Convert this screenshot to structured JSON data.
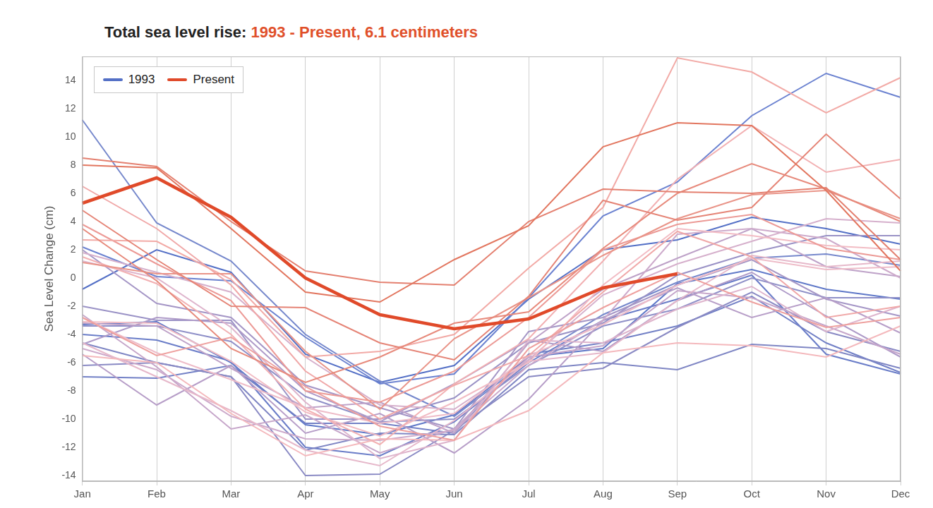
{
  "chart_data": {
    "type": "line",
    "title": "Total sea level rise:",
    "subtitle": "1993 - Present, 6.1 centimeters",
    "y_label": "Sea Level Change (cm)",
    "categories": [
      "Jan",
      "Feb",
      "Mar",
      "Apr",
      "May",
      "Jun",
      "Jul",
      "Aug",
      "Sep",
      "Oct",
      "Nov",
      "Dec"
    ],
    "ylim": [
      -14.4,
      15.7
    ],
    "yticks": [
      -14,
      -12,
      -10,
      -8,
      -6,
      -4,
      -2,
      0,
      2,
      4,
      6,
      8,
      10,
      12,
      14
    ],
    "grid": "x",
    "legend": "upper left",
    "series": [
      {
        "name": "1993",
        "color": "#5470c6",
        "values": [
          -0.8,
          2.0,
          0.4,
          -5.4,
          -7.4,
          -6.2,
          -1.5,
          2.0,
          2.7,
          4.3,
          3.5,
          2.4
        ]
      },
      {
        "color": "#5f78c8",
        "values": [
          -3.3,
          -3.1,
          -6.0,
          -10.4,
          -11.1,
          -9.7,
          -5.6,
          -5.0,
          -0.4,
          0.6,
          -0.8,
          -1.5
        ]
      },
      {
        "color": "#6a7dc8",
        "values": [
          -4.0,
          -4.4,
          -5.9,
          -12.0,
          -12.6,
          -10.2,
          -6.0,
          -3.0,
          -1.5,
          0.2,
          -5.4,
          -6.8
        ]
      },
      {
        "color": "#7280c6",
        "values": [
          -7.0,
          -7.1,
          -6.2,
          -10.3,
          -10.3,
          -11.0,
          -5.4,
          -4.6,
          -3.4,
          -1.3,
          -4.6,
          -6.7
        ]
      },
      {
        "color": "#6b82d0",
        "values": [
          2.2,
          0.1,
          -0.2,
          -4.2,
          -7.5,
          -6.8,
          -1.4,
          4.4,
          6.8,
          11.5,
          14.5,
          12.8
        ]
      },
      {
        "color": "#7688cc",
        "values": [
          11.2,
          3.9,
          1.2,
          -4.0,
          -7.3,
          -9.8,
          -5.8,
          -2.6,
          -0.3,
          1.4,
          1.7,
          0.9
        ]
      },
      {
        "color": "#7f86c4",
        "values": [
          -4.6,
          -6.0,
          -7.0,
          -12.2,
          -11.0,
          -11.1,
          -6.5,
          -6.0,
          -6.5,
          -4.7,
          -5.0,
          -6.4
        ]
      },
      {
        "color": "#8a8ac4",
        "values": [
          -6.2,
          -6.0,
          -7.0,
          -14.0,
          -13.9,
          -10.8,
          -7.0,
          -6.4,
          -3.5,
          -1.0,
          -3.8,
          -5.2
        ]
      },
      {
        "color": "#8f90c8",
        "values": [
          -3.4,
          -3.4,
          -4.5,
          -8.4,
          -10.2,
          -10.0,
          -6.2,
          -3.4,
          -2.2,
          0.0,
          -1.4,
          -1.4
        ]
      },
      {
        "color": "#9a92c6",
        "values": [
          -2.0,
          -3.0,
          -3.0,
          -10.0,
          -10.0,
          -8.5,
          -4.6,
          -3.2,
          0.2,
          1.8,
          3.0,
          3.0
        ]
      },
      {
        "color": "#a596c6",
        "values": [
          2.0,
          -1.8,
          -2.8,
          -7.6,
          -9.2,
          -10.7,
          -3.8,
          -2.8,
          -0.5,
          1.3,
          -1.5,
          -2.7
        ]
      },
      {
        "color": "#ae9ac8",
        "values": [
          -4.7,
          -2.8,
          -3.2,
          -8.0,
          -10.2,
          -7.5,
          -4.4,
          -5.2,
          -1.6,
          0.4,
          -2.7,
          -5.6
        ]
      },
      {
        "color": "#b79ec8",
        "values": [
          -5.4,
          -9.0,
          -6.2,
          -11.0,
          -9.6,
          -12.4,
          -8.6,
          -3.0,
          -0.7,
          -2.8,
          -1.4,
          -3.9
        ]
      },
      {
        "color": "#bea2c8",
        "values": [
          -3.2,
          -3.4,
          -6.4,
          -9.2,
          -8.8,
          -11.0,
          -4.6,
          -0.8,
          1.4,
          3.5,
          0.8,
          0.1
        ]
      },
      {
        "color": "#c6a6ca",
        "values": [
          -2.6,
          -6.3,
          -10.7,
          -9.7,
          -12.4,
          -10.7,
          -5.6,
          -4.8,
          -0.9,
          -1.4,
          -3.4,
          -5.4
        ]
      },
      {
        "color": "#cdaacb",
        "values": [
          -5.0,
          -6.5,
          -9.8,
          -11.4,
          -11.5,
          -10.8,
          -6.2,
          -3.0,
          3.1,
          3.5,
          2.8,
          0.0
        ]
      },
      {
        "color": "#d6b0cc",
        "values": [
          1.8,
          0.4,
          -1.0,
          -5.6,
          -9.0,
          -9.3,
          -5.8,
          -1.2,
          1.0,
          2.6,
          4.2,
          3.9
        ]
      },
      {
        "color": "#deb4cc",
        "values": [
          1.2,
          0.0,
          -3.5,
          -8.8,
          -12.8,
          -11.5,
          -4.4,
          -4.6,
          -2.2,
          -0.6,
          -3.8,
          -2.0
        ]
      },
      {
        "color": "#e6b8ca",
        "values": [
          -4.6,
          -7.0,
          -9.4,
          -12.2,
          -13.3,
          -10.1,
          -5.9,
          -5.3,
          -1.6,
          1.6,
          0.8,
          1.2
        ]
      },
      {
        "color": "#eebcc8",
        "values": [
          -2.8,
          -5.3,
          -7.2,
          -9.2,
          -10.3,
          -9.6,
          -5.5,
          -3.3,
          -0.5,
          1.4,
          0.6,
          0.8
        ]
      },
      {
        "color": "#f2bcc4",
        "values": [
          -3.1,
          -3.2,
          -5.9,
          -9.5,
          -11.2,
          -8.8,
          -6.0,
          -0.5,
          3.5,
          3.0,
          2.3,
          2.0
        ]
      },
      {
        "color": "#f4b8bc",
        "values": [
          -5.5,
          -6.0,
          -9.6,
          -12.6,
          -11.4,
          -11.5,
          -9.4,
          -5.3,
          -4.6,
          -4.8,
          -5.6,
          -3.4
        ]
      },
      {
        "color": "#f2b0b2",
        "values": [
          1.5,
          -0.4,
          -4.0,
          -9.3,
          -11.8,
          -7.5,
          -4.3,
          1.2,
          7.0,
          10.8,
          7.5,
          8.4
        ]
      },
      {
        "color": "#f0a8a8",
        "values": [
          6.5,
          3.5,
          -0.5,
          -6.6,
          -10.0,
          -7.6,
          -5.5,
          -1.0,
          3.3,
          1.5,
          -2.8,
          -2.0
        ]
      },
      {
        "color": "#eea09e",
        "values": [
          -2.8,
          -5.5,
          -4.2,
          -7.7,
          -10.5,
          -11.5,
          -5.0,
          -2.1,
          0.4,
          -1.7,
          -3.5,
          -2.8
        ]
      },
      {
        "color": "#ec9a96",
        "values": [
          3.8,
          1.0,
          -1.6,
          -8.0,
          -8.8,
          -6.6,
          -2.8,
          2.0,
          3.8,
          4.5,
          2.1,
          1.3
        ]
      },
      {
        "color": "#f2aaa6",
        "values": [
          2.7,
          2.6,
          -0.1,
          -5.6,
          -5.2,
          -4.0,
          0.7,
          5.0,
          15.6,
          14.6,
          11.7,
          14.2
        ]
      },
      {
        "color": "#e99488",
        "values": [
          1.1,
          0.3,
          0.3,
          -5.2,
          -9.3,
          -4.3,
          -1.4,
          1.6,
          4.2,
          5.9,
          6.2,
          4.2
        ]
      },
      {
        "color": "#e78a7c",
        "values": [
          3.5,
          -0.2,
          -5.0,
          -7.4,
          -5.6,
          -3.2,
          -2.4,
          2.1,
          6.0,
          8.1,
          6.3,
          4.0
        ]
      },
      {
        "color": "#e58476",
        "values": [
          4.8,
          1.3,
          -2.0,
          -2.1,
          -4.6,
          -5.8,
          -1.3,
          5.5,
          4.1,
          5.0,
          10.2,
          5.6
        ]
      },
      {
        "color": "#e48070",
        "values": [
          8.5,
          7.9,
          4.0,
          0.5,
          -0.3,
          -0.5,
          4.0,
          6.3,
          6.1,
          6.0,
          6.4,
          1.3
        ]
      },
      {
        "color": "#e2765f",
        "values": [
          8.0,
          7.8,
          3.5,
          -1.0,
          -1.7,
          1.3,
          3.7,
          9.3,
          11.0,
          10.8,
          6.2,
          0.5
        ]
      },
      {
        "name": "Present",
        "color": "#e04a2a",
        "values": [
          5.3,
          7.1,
          4.3,
          0.0,
          -2.6,
          -3.6,
          -2.9,
          -0.7,
          0.3,
          null,
          null,
          null
        ]
      }
    ]
  }
}
